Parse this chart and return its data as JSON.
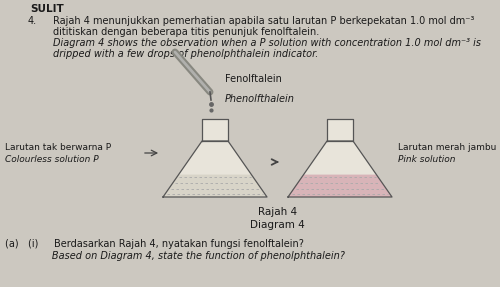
{
  "bg_color": "#ccc8c0",
  "title_text": "SULIT",
  "question_num": "4.",
  "question_malay_1": "Rajah 4 menunjukkan pemerhatian apabila satu larutan P berkepekatan 1.0 mol dm⁻³",
  "question_malay_2": "dititiskan dengan beberapa titis penunjuk fenolftalein.",
  "question_english_1": "Diagram 4 shows the observation when a P solution with concentration 1.0 mol dm⁻³ is",
  "question_english_2": "dripped with a few drops of phenolphthalein indicator.",
  "label_dropper_1": "Fenolftalein",
  "label_dropper_2": "Phenolfthalein",
  "label_left_malay": "Larutan tak berwarna P",
  "label_left_english": "Colourless solution P",
  "label_right_malay": "Larutan merah jambu",
  "label_right_english": "Pink solution",
  "caption_malay": "Rajah 4",
  "caption_english": "Diagram 4",
  "sub_q1": "(a)   (i)     Berdasarkan Rajah 4, nyatakan fungsi fenolftalein?",
  "sub_q2": "               Based on Diagram 4, state the function of phenolphthalein?",
  "flask_body_color": "#e8e4da",
  "flask_outline": "#555555",
  "flask_liquid_left": "#d8d4c8",
  "flask_liquid_right": "#d8b4b8",
  "hatch_color": "#aaaaaa",
  "dropper_body": "#888880",
  "dropper_highlight": "#bbbbbb",
  "drop_color": "#666666",
  "arrow_color": "#444444",
  "text_color": "#1a1a1a",
  "italic_color": "#1a1a1a"
}
